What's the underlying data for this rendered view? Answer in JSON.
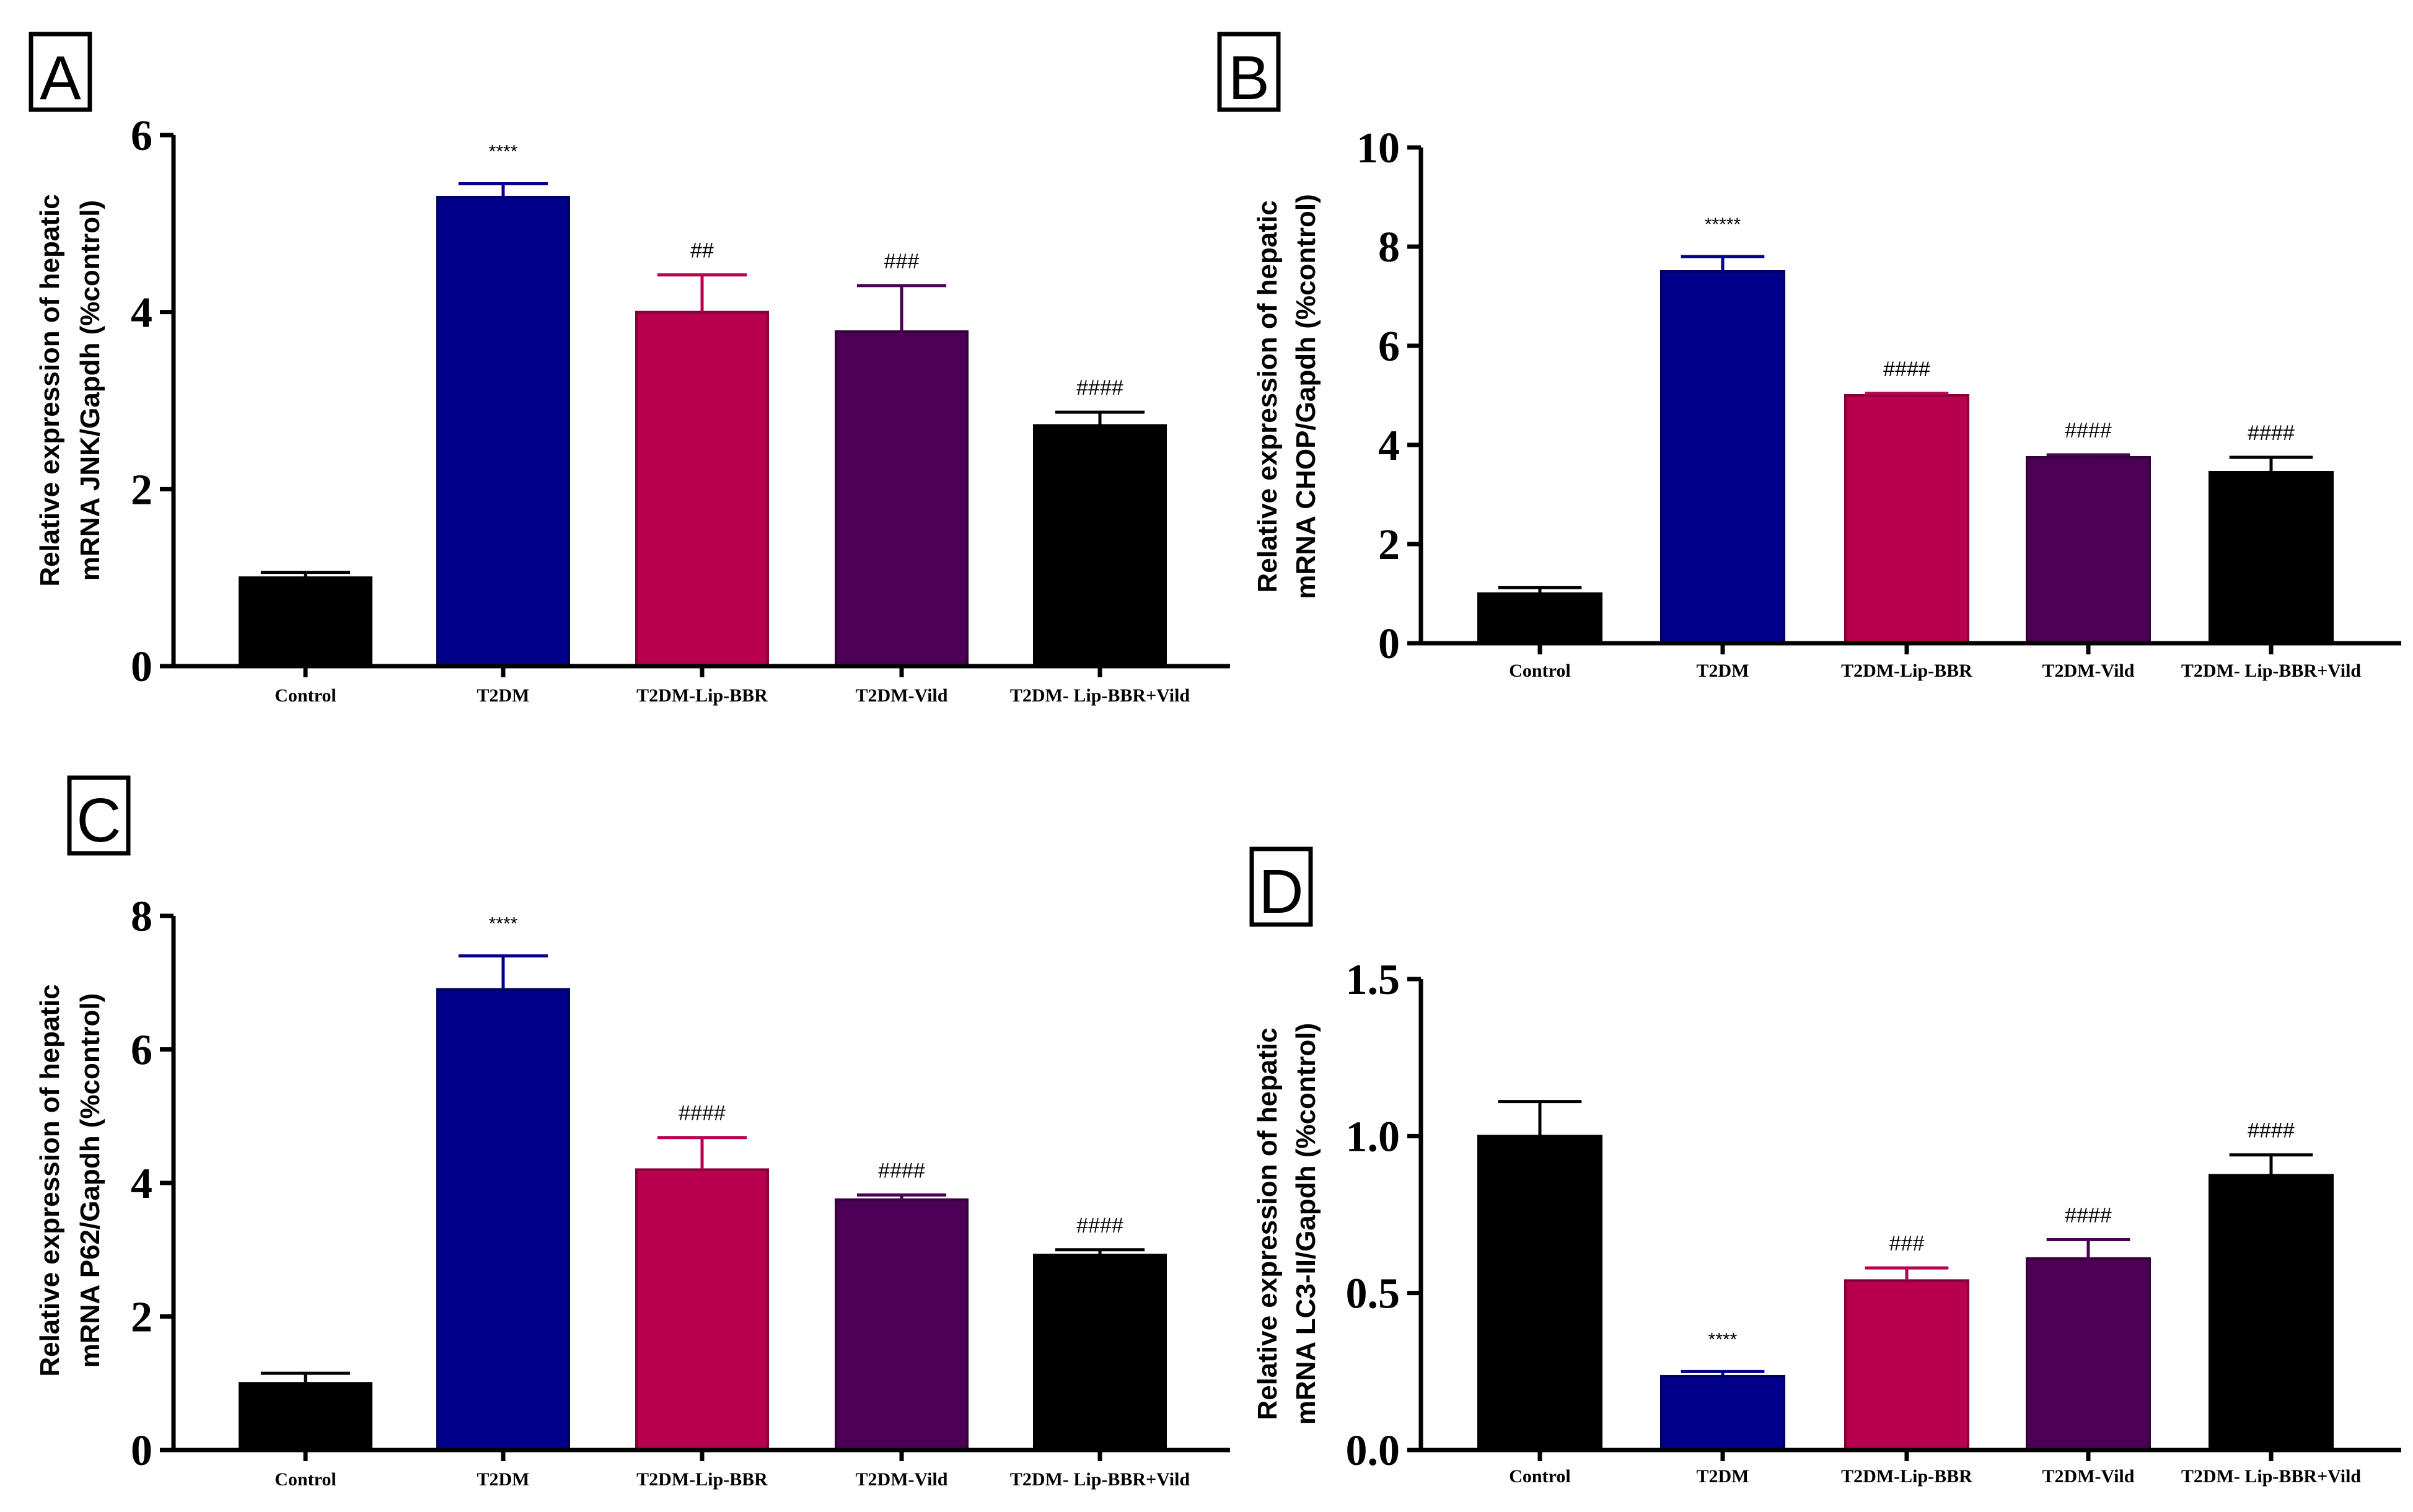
{
  "colors": {
    "Control": "#000000",
    "T2DM": "#00008b",
    "T2DM-Lip-BBR": "#b8004f",
    "T2DM-Vild": "#4b0055",
    "T2DM- Lip-BBR+Vild": "#000000"
  },
  "chart_data": [
    {
      "panel": "A",
      "type": "bar",
      "categories": [
        "Control",
        "T2DM",
        "T2DM-Lip-BBR",
        "T2DM-Vild",
        "T2DM- Lip-BBR+Vild"
      ],
      "values": [
        1.0,
        5.3,
        4.0,
        3.78,
        2.72
      ],
      "errors": [
        0.06,
        0.15,
        0.42,
        0.52,
        0.15
      ],
      "annotations": [
        "",
        "****",
        "##",
        "###",
        "####"
      ],
      "ylabel_lines": [
        "Relative expression of hepatic",
        "mRNA JNK/Gapdh (%control)"
      ],
      "yticks": [
        "0",
        "2",
        "4",
        "6"
      ],
      "ytick_values": [
        0,
        2,
        4,
        6
      ],
      "ylim": [
        0,
        6
      ]
    },
    {
      "panel": "B",
      "type": "bar",
      "categories": [
        "Control",
        "T2DM",
        "T2DM-Lip-BBR",
        "T2DM-Vild",
        "T2DM- Lip-BBR+Vild"
      ],
      "values": [
        1.0,
        7.5,
        5.0,
        3.75,
        3.45
      ],
      "errors": [
        0.12,
        0.3,
        0.04,
        0.05,
        0.3
      ],
      "annotations": [
        "",
        "*****",
        "####",
        "####",
        "####"
      ],
      "ylabel_lines": [
        "Relative expression of hepatic",
        "mRNA CHOP/Gapdh (%control)"
      ],
      "yticks": [
        "0",
        "2",
        "4",
        "6",
        "8",
        "10"
      ],
      "ytick_values": [
        0,
        2,
        4,
        6,
        8,
        10
      ],
      "ylim": [
        0,
        10
      ]
    },
    {
      "panel": "C",
      "type": "bar",
      "categories": [
        "Control",
        "T2DM",
        "T2DM-Lip-BBR",
        "T2DM-Vild",
        "T2DM- Lip-BBR+Vild"
      ],
      "values": [
        1.0,
        6.9,
        4.2,
        3.75,
        2.92
      ],
      "errors": [
        0.15,
        0.5,
        0.48,
        0.07,
        0.08
      ],
      "annotations": [
        "",
        "****",
        "####",
        "####",
        "####"
      ],
      "ylabel_lines": [
        "Relative expression of hepatic",
        "mRNA P62/Gapdh (%control)"
      ],
      "yticks": [
        "0",
        "2",
        "4",
        "6",
        "8"
      ],
      "ytick_values": [
        0,
        2,
        4,
        6,
        8
      ],
      "ylim": [
        0,
        8
      ]
    },
    {
      "panel": "D",
      "type": "bar",
      "categories": [
        "Control",
        "T2DM",
        "T2DM-Lip-BBR",
        "T2DM-Vild",
        "T2DM- Lip-BBR+Vild"
      ],
      "values": [
        1.0,
        0.235,
        0.54,
        0.61,
        0.875
      ],
      "errors": [
        0.11,
        0.015,
        0.04,
        0.06,
        0.065
      ],
      "annotations": [
        "",
        "****",
        "###",
        "####",
        "####"
      ],
      "ylabel_lines": [
        "Relative expression of hepatic",
        "mRNA LC3-II/Gapdh (%control)"
      ],
      "yticks": [
        "0.0",
        "0.5",
        "1.0",
        "1.5"
      ],
      "ytick_values": [
        0,
        0.5,
        1.0,
        1.5
      ],
      "ylim": [
        0,
        1.5
      ]
    }
  ]
}
